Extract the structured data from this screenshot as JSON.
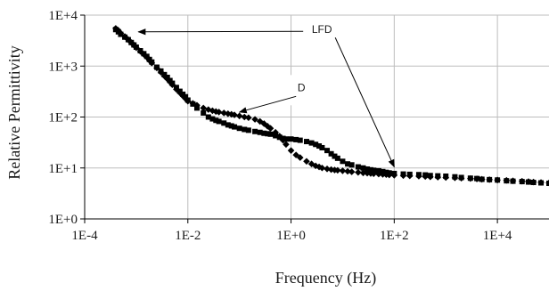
{
  "chart_data": {
    "type": "scatter",
    "title": "",
    "xlabel": "Frequency (Hz)",
    "ylabel": "Relative Permittivity",
    "xscale": "log",
    "yscale": "log",
    "xlim": [
      0.0001,
      100000
    ],
    "ylim": [
      1,
      10000
    ],
    "grid": true,
    "x_ticks": [
      {
        "value": 0.0001,
        "label": "1E-4"
      },
      {
        "value": 0.01,
        "label": "1E-2"
      },
      {
        "value": 1,
        "label": "1E+0"
      },
      {
        "value": 100,
        "label": "1E+2"
      },
      {
        "value": 10000,
        "label": "1E+4"
      }
    ],
    "y_ticks": [
      {
        "value": 1,
        "label": "1E+0"
      },
      {
        "value": 10,
        "label": "1E+1"
      },
      {
        "value": 100,
        "label": "1E+2"
      },
      {
        "value": 1000,
        "label": "1E+3"
      },
      {
        "value": 10000,
        "label": "1E+4"
      }
    ],
    "series": [
      {
        "marker": "square",
        "x": [
          0.0004,
          0.00045,
          0.0005,
          0.0006,
          0.0007,
          0.0008,
          0.0009,
          0.001,
          0.0012,
          0.0014,
          0.0016,
          0.0018,
          0.002,
          0.0025,
          0.003,
          0.0035,
          0.004,
          0.0045,
          0.005,
          0.006,
          0.007,
          0.008,
          0.009,
          0.01,
          0.0125,
          0.015,
          0.02,
          0.025,
          0.03,
          0.035,
          0.04,
          0.05,
          0.06,
          0.07,
          0.08,
          0.1,
          0.125,
          0.15,
          0.2,
          0.25,
          0.3,
          0.35,
          0.4,
          0.5,
          0.6,
          0.7,
          0.8,
          1,
          1.25,
          1.5,
          2,
          2.5,
          3,
          3.5,
          4,
          5,
          6,
          7,
          8,
          10,
          12.5,
          15,
          20,
          25,
          30,
          35,
          40,
          50,
          60,
          70,
          80,
          100,
          150,
          200,
          300,
          400,
          500,
          700,
          1000,
          1500,
          2000,
          3000,
          4000,
          5000,
          7000,
          10000,
          15000,
          20000,
          30000,
          40000,
          50000,
          70000,
          100000
        ],
        "y": [
          5200,
          4700,
          4200,
          3700,
          3300,
          2900,
          2600,
          2350,
          2000,
          1750,
          1550,
          1350,
          1200,
          950,
          800,
          680,
          600,
          520,
          460,
          380,
          320,
          280,
          250,
          215,
          180,
          150,
          120,
          100,
          92,
          86,
          82,
          76,
          70,
          67,
          64,
          60,
          57,
          55,
          52,
          50,
          48,
          47,
          46,
          43,
          40,
          38,
          37,
          37,
          36,
          35,
          33,
          31,
          29,
          27,
          25,
          22,
          19,
          17,
          15.5,
          13.5,
          12,
          11.5,
          10.5,
          10,
          9.5,
          9.2,
          9,
          8.8,
          8.5,
          8.2,
          8,
          7.8,
          7.6,
          7.5,
          7.4,
          7.3,
          7.1,
          7,
          6.9,
          6.7,
          6.5,
          6.3,
          6.2,
          6,
          5.9,
          5.8,
          5.6,
          5.5,
          5.4,
          5.3,
          5.2,
          5.1,
          5
        ]
      },
      {
        "marker": "diamond",
        "x": [
          0.0004,
          0.00045,
          0.0005,
          0.0006,
          0.0007,
          0.0008,
          0.0009,
          0.001,
          0.0012,
          0.0014,
          0.0016,
          0.0018,
          0.002,
          0.0025,
          0.003,
          0.0035,
          0.004,
          0.0045,
          0.005,
          0.006,
          0.007,
          0.008,
          0.009,
          0.01,
          0.0125,
          0.015,
          0.02,
          0.025,
          0.03,
          0.035,
          0.04,
          0.05,
          0.06,
          0.07,
          0.08,
          0.1,
          0.125,
          0.15,
          0.2,
          0.25,
          0.3,
          0.35,
          0.4,
          0.5,
          0.6,
          0.7,
          0.8,
          1,
          1.25,
          1.5,
          2,
          2.5,
          3,
          3.5,
          4,
          5,
          6,
          7,
          8,
          10,
          12.5,
          15,
          20,
          25,
          30,
          35,
          40,
          50,
          60,
          70,
          80,
          100,
          150,
          200,
          300,
          400,
          500,
          700,
          1000,
          1500,
          2000,
          3000,
          4000,
          5000,
          7000,
          10000,
          15000,
          20000,
          30000,
          40000,
          50000,
          70000,
          100000
        ],
        "y": [
          5500,
          5000,
          4400,
          3800,
          3300,
          2900,
          2600,
          2300,
          1950,
          1700,
          1500,
          1300,
          1150,
          920,
          760,
          640,
          560,
          490,
          430,
          350,
          300,
          260,
          230,
          205,
          185,
          170,
          150,
          140,
          133,
          128,
          125,
          120,
          116,
          113,
          110,
          105,
          100,
          97,
          90,
          82,
          74,
          66,
          60,
          50,
          42,
          35,
          29,
          22,
          18,
          16,
          13.5,
          12,
          11,
          10.5,
          10,
          9.6,
          9.3,
          9.1,
          9,
          8.8,
          8.6,
          8.4,
          8.2,
          8,
          7.9,
          7.8,
          7.7,
          7.6,
          7.5,
          7.4,
          7.3,
          7.2,
          7.1,
          7,
          6.9,
          6.8,
          6.7,
          6.6,
          6.5,
          6.4,
          6.3,
          6.2,
          6.1,
          6,
          5.9,
          5.8,
          5.7,
          5.6,
          5.5,
          5.4,
          5.3,
          5.2,
          5.1
        ]
      }
    ],
    "annotations": [
      {
        "label": "LFD",
        "text_x": 3,
        "text_y": 5000
      },
      {
        "label": "D",
        "text_x": 3,
        "text_y": 380
      }
    ]
  }
}
